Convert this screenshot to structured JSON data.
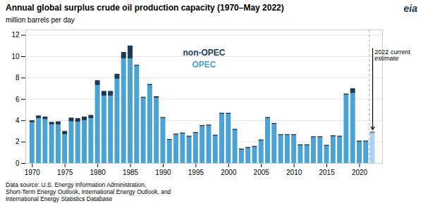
{
  "chart_data": {
    "type": "bar",
    "title": "Annual global surplus crude oil production capacity (1970–May 2022)",
    "ylabel": "million barrels per day",
    "x": [
      1970,
      1971,
      1972,
      1973,
      1974,
      1975,
      1976,
      1977,
      1978,
      1979,
      1980,
      1981,
      1982,
      1983,
      1984,
      1985,
      1986,
      1987,
      1988,
      1989,
      1990,
      1991,
      1992,
      1993,
      1994,
      1995,
      1996,
      1997,
      1998,
      1999,
      2000,
      2001,
      2002,
      2003,
      2004,
      2005,
      2006,
      2007,
      2008,
      2009,
      2010,
      2011,
      2012,
      2013,
      2014,
      2015,
      2016,
      2017,
      2018,
      2019,
      2020,
      2021,
      2022
    ],
    "series": [
      {
        "name": "OPEC",
        "values": [
          3.8,
          4.2,
          4.1,
          3.6,
          3.6,
          2.7,
          3.9,
          3.85,
          4.0,
          4.2,
          7.3,
          6.3,
          6.3,
          7.9,
          9.8,
          9.8,
          9.1,
          6.1,
          7.3,
          6.1,
          4.2,
          2.15,
          2.65,
          2.75,
          2.45,
          2.8,
          3.45,
          3.5,
          2.55,
          4.6,
          4.6,
          3.1,
          1.25,
          1.4,
          1.5,
          2.1,
          4.2,
          3.65,
          2.6,
          2.6,
          2.6,
          1.65,
          1.65,
          2.4,
          2.4,
          1.6,
          2.5,
          2.45,
          6.4,
          6.55,
          2.0,
          2.0,
          2.8
        ],
        "colors": [
          "#4ba3d4",
          "#4ba3d4",
          "#4ba3d4",
          "#4ba3d4",
          "#4ba3d4",
          "#4ba3d4",
          "#4ba3d4",
          "#4ba3d4",
          "#4ba3d4",
          "#4ba3d4",
          "#4ba3d4",
          "#4ba3d4",
          "#4ba3d4",
          "#4ba3d4",
          "#4ba3d4",
          "#4ba3d4",
          "#4ba3d4",
          "#4ba3d4",
          "#4ba3d4",
          "#4ba3d4",
          "#4ba3d4",
          "#4ba3d4",
          "#4ba3d4",
          "#4ba3d4",
          "#4ba3d4",
          "#4ba3d4",
          "#4ba3d4",
          "#4ba3d4",
          "#4ba3d4",
          "#4ba3d4",
          "#4ba3d4",
          "#4ba3d4",
          "#4ba3d4",
          "#4ba3d4",
          "#4ba3d4",
          "#4ba3d4",
          "#4ba3d4",
          "#4ba3d4",
          "#4ba3d4",
          "#4ba3d4",
          "#4ba3d4",
          "#4ba3d4",
          "#4ba3d4",
          "#4ba3d4",
          "#4ba3d4",
          "#4ba3d4",
          "#4ba3d4",
          "#4ba3d4",
          "#4ba3d4",
          "#4ba3d4",
          "#4ba3d4",
          "#4ba3d4",
          "#aad4ef"
        ]
      },
      {
        "name": "non-OPEC",
        "values": [
          0.2,
          0.25,
          0.25,
          0.25,
          0.3,
          0.3,
          0.35,
          0.35,
          0.35,
          0.3,
          0.45,
          0.45,
          0.45,
          0.45,
          0.6,
          1.2,
          0.1,
          0.1,
          0.1,
          0.15,
          0.1,
          0.1,
          0.1,
          0.1,
          0.1,
          0.1,
          0.1,
          0.1,
          0.1,
          0.1,
          0.1,
          0.1,
          0.1,
          0.1,
          0.1,
          0.1,
          0.1,
          0.1,
          0.1,
          0.1,
          0.1,
          0.1,
          0.1,
          0.1,
          0.1,
          0.1,
          0.1,
          0.1,
          0.1,
          0.45,
          0.1,
          0.1,
          0.15
        ],
        "colors": [
          "#1a3a5c",
          "#1a3a5c",
          "#1a3a5c",
          "#1a3a5c",
          "#1a3a5c",
          "#1a3a5c",
          "#1a3a5c",
          "#1a3a5c",
          "#1a3a5c",
          "#1a3a5c",
          "#1a3a5c",
          "#1a3a5c",
          "#1a3a5c",
          "#1a3a5c",
          "#1a3a5c",
          "#1a3a5c",
          "#1a3a5c",
          "#1a3a5c",
          "#1a3a5c",
          "#1a3a5c",
          "#1a3a5c",
          "#1a3a5c",
          "#1a3a5c",
          "#1a3a5c",
          "#1a3a5c",
          "#1a3a5c",
          "#1a3a5c",
          "#1a3a5c",
          "#1a3a5c",
          "#1a3a5c",
          "#1a3a5c",
          "#1a3a5c",
          "#1a3a5c",
          "#1a3a5c",
          "#1a3a5c",
          "#1a3a5c",
          "#1a3a5c",
          "#1a3a5c",
          "#1a3a5c",
          "#1a3a5c",
          "#1a3a5c",
          "#1a3a5c",
          "#1a3a5c",
          "#1a3a5c",
          "#1a3a5c",
          "#1a3a5c",
          "#1a3a5c",
          "#1a3a5c",
          "#1a3a5c",
          "#1a3a5c",
          "#1a3a5c",
          "#1a3a5c",
          "#808080"
        ]
      }
    ],
    "stacked": true,
    "xlim": [
      1969,
      2023.5
    ],
    "xticks": [
      1970,
      1975,
      1980,
      1985,
      1990,
      1995,
      2000,
      2005,
      2010,
      2015,
      2020
    ],
    "ylim": [
      0,
      12.5
    ],
    "yticks": [
      0,
      2,
      4,
      6,
      8,
      10,
      12
    ],
    "grid": true,
    "legend": "top",
    "annotations": [
      {
        "text": "2022 current\nestimate",
        "x": 2022
      }
    ],
    "source": [
      "Data source: U.S. Energy Information Administration,",
      "Short-Term Energy Outlook, International Energy Outlook, and",
      "International Energy Statistics Database"
    ],
    "logo": "eia"
  }
}
